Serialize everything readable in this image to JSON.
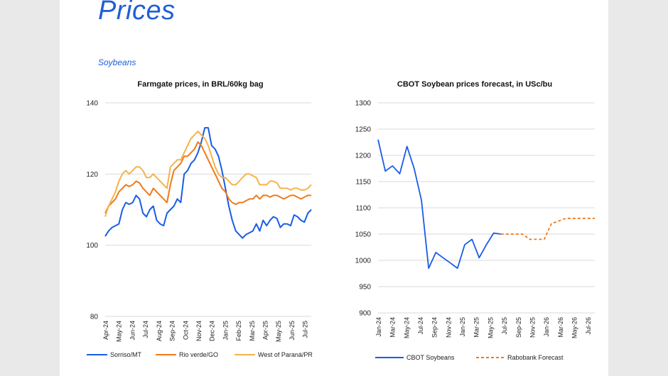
{
  "page": {
    "title": "Prices",
    "section": "Soybeans"
  },
  "colors": {
    "title": "#1f5fd6",
    "blue": "#1a5ce6",
    "orange": "#f07a1a",
    "gold": "#f7b24a"
  },
  "chart_data": [
    {
      "type": "line",
      "title": "Farmgate prices, in BRL/60kg bag",
      "ylim": [
        80,
        140
      ],
      "yticks": [
        "80",
        "100",
        "120",
        "140"
      ],
      "grid": true,
      "legend": "bottom",
      "xlabels": [
        "Apr-24",
        "May-24",
        "Jun-24",
        "Jul-24",
        "Aug-24",
        "Sep-24",
        "Oct-24",
        "Nov-24",
        "Dec-24",
        "Jan-25",
        "Feb-25",
        "Mar-25",
        "Apr-25",
        "May-25",
        "Jun-25",
        "Jul-25"
      ],
      "series": [
        {
          "name": "Sorriso/MT",
          "color": "#1a5ce6",
          "values": [
            102.5,
            104,
            105,
            105.5,
            106,
            110,
            112,
            111.5,
            112,
            114,
            113,
            109,
            108,
            110,
            111,
            107,
            106,
            105.5,
            109,
            110,
            111,
            113,
            112,
            120,
            121,
            123,
            124,
            126,
            129,
            133,
            133,
            128,
            127,
            125,
            121,
            116,
            111,
            107,
            104,
            103,
            102,
            103,
            103.5,
            104,
            106,
            104,
            107,
            105.5,
            107,
            108,
            107.5,
            105,
            106,
            106,
            105.5,
            108.5,
            108,
            107,
            106.5,
            109,
            110
          ]
        },
        {
          "name": "Rio verde/GO",
          "color": "#f07a1a",
          "values": [
            109,
            111,
            112,
            113,
            115,
            116,
            117,
            116.5,
            117,
            118,
            117.5,
            116,
            115,
            114,
            116,
            115,
            114,
            113,
            112,
            117,
            121,
            122,
            123,
            125,
            125,
            126,
            127,
            129,
            128,
            126,
            124,
            122,
            120,
            118,
            116,
            115,
            113,
            112,
            111.5,
            112,
            112,
            112.5,
            113,
            113,
            114,
            113,
            114,
            114,
            113.5,
            114,
            114,
            113.5,
            113,
            113.5,
            114,
            114,
            113.5,
            113,
            113.5,
            114,
            114
          ]
        },
        {
          "name": "West of Paraná/PR",
          "color": "#f7b24a",
          "values": [
            108,
            111,
            113,
            115,
            118,
            120,
            121,
            120,
            121,
            122,
            122,
            121,
            119,
            119,
            120,
            119,
            118,
            117,
            116,
            122,
            123,
            124,
            124,
            126,
            128,
            130,
            131,
            132,
            131,
            130,
            128,
            125,
            122,
            120,
            119,
            119,
            118,
            117,
            117,
            118,
            119,
            120,
            120,
            119.5,
            119,
            117,
            117,
            117,
            118,
            118,
            117.5,
            116,
            116,
            116,
            115.5,
            116,
            116,
            115.5,
            115.5,
            116,
            117
          ]
        }
      ]
    },
    {
      "type": "line",
      "title": "CBOT Soybean prices forecast, in USc/bu",
      "ylim": [
        900,
        1300
      ],
      "yticks": [
        "900",
        "950",
        "1000",
        "1050",
        "1100",
        "1150",
        "1200",
        "1250",
        "1300"
      ],
      "grid": true,
      "legend": "bottom",
      "xlabels": [
        "Jan-24",
        "Mar-24",
        "May-24",
        "Jul-24",
        "Sep-24",
        "Nov-24",
        "Jan-25",
        "Mar-25",
        "May-25",
        "Jul-25",
        "Sep-25",
        "Nov-25",
        "Jan-26",
        "Mar-26",
        "May-26",
        "Jul-26"
      ],
      "series": [
        {
          "name": "CBOT Soybeans",
          "color": "#1a5ce6",
          "style": "solid",
          "start_index": 0,
          "values": [
            1230,
            1170,
            1180,
            1165,
            1217,
            1175,
            1115,
            985,
            1015,
            1005,
            995,
            985,
            1030,
            1040,
            1005,
            1030,
            1052,
            1050
          ]
        },
        {
          "name": "Rabobank Forecast",
          "color": "#f07a1a",
          "style": "dashed",
          "start_index": 17,
          "values": [
            1050,
            1050,
            1050,
            1050,
            1040,
            1040,
            1040,
            1070,
            1075,
            1080,
            1080,
            1080,
            1080,
            1080
          ]
        }
      ]
    }
  ]
}
